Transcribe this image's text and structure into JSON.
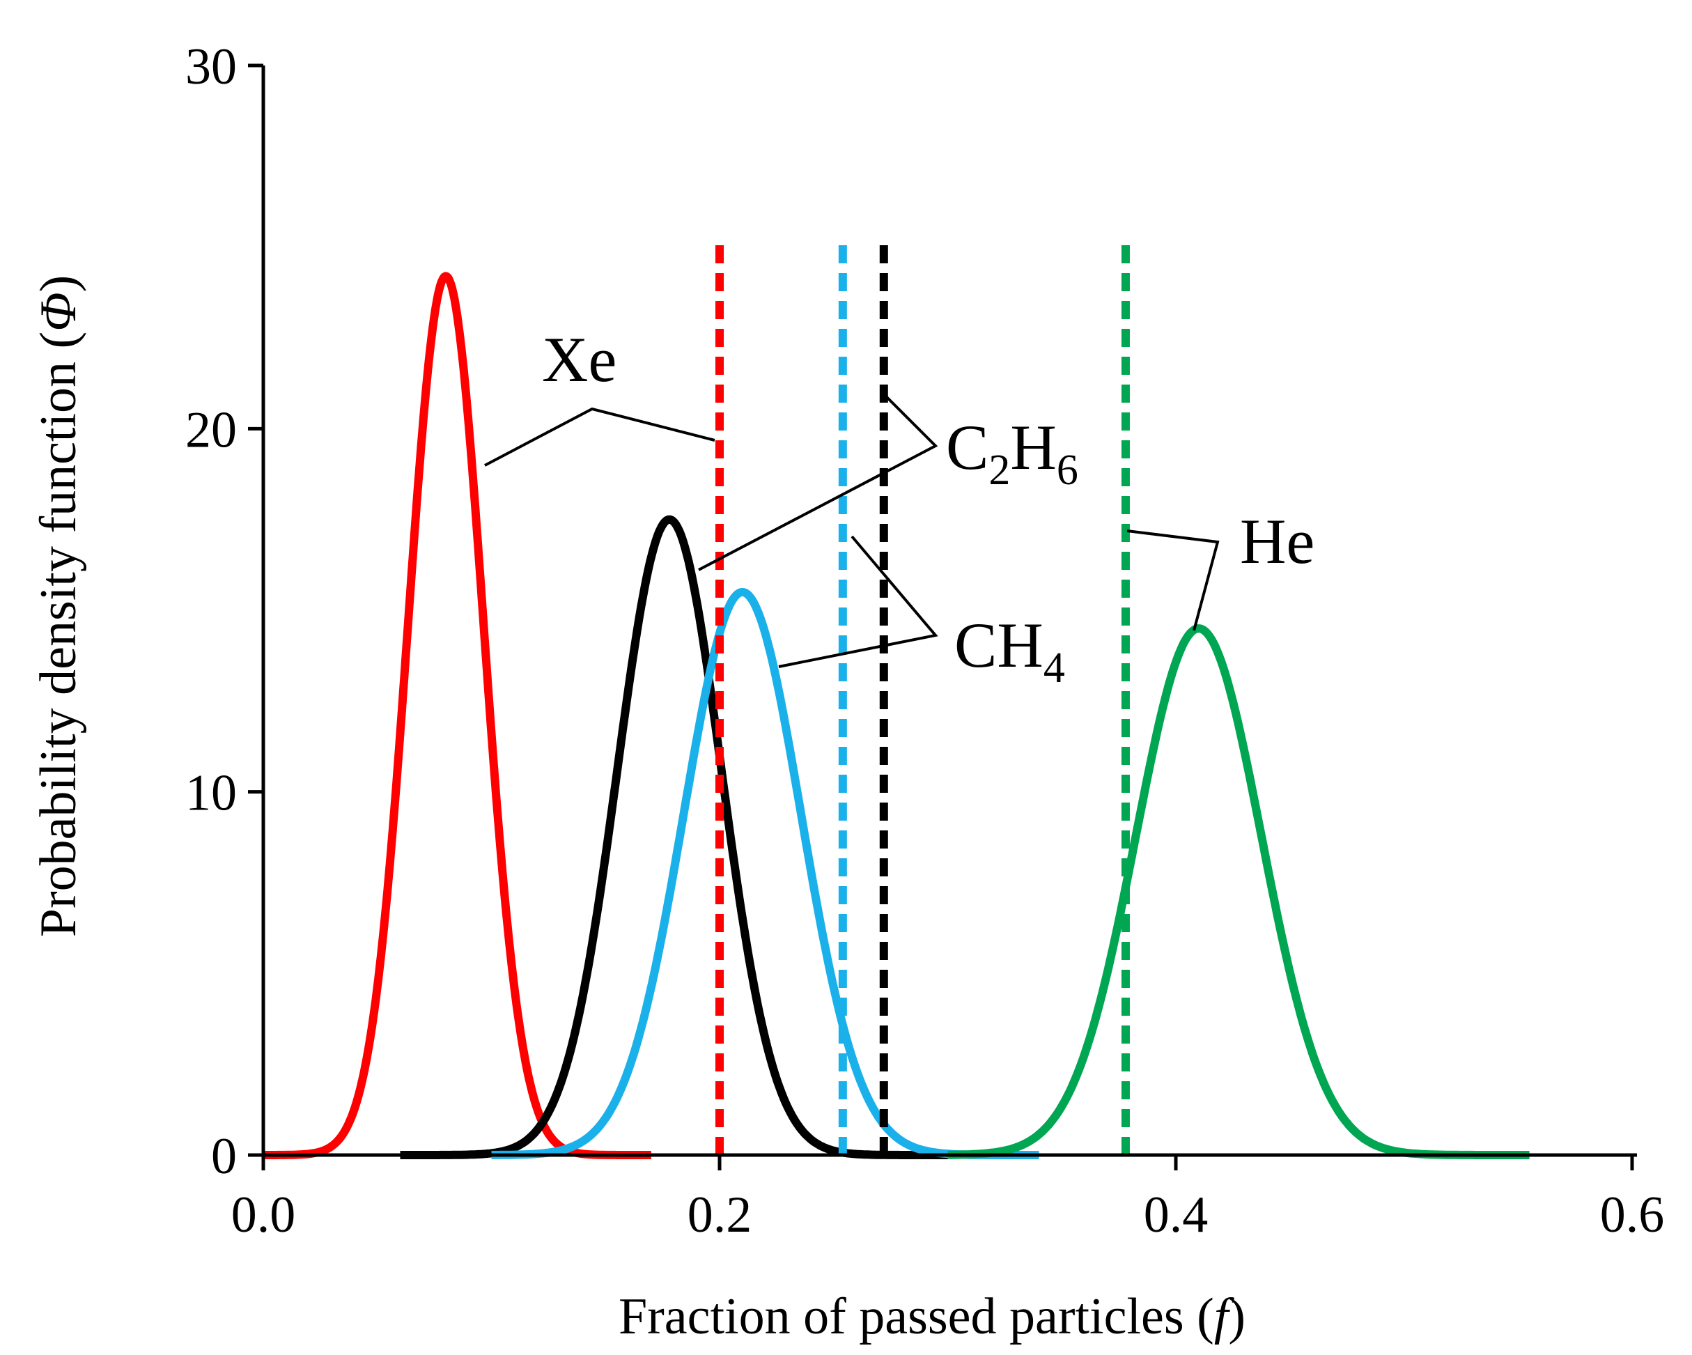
{
  "chart_data": {
    "type": "line",
    "title": "",
    "xlabel": "Fraction of passed particles (f)",
    "xlabel_main": "Fraction of passed particles (",
    "xlabel_var": "f",
    "xlabel_end": ")",
    "ylabel": "Probability density function (Φ)",
    "ylabel_main": "Probability density function (",
    "ylabel_var": "Φ",
    "ylabel_end": ")",
    "xlim": [
      0.0,
      0.6
    ],
    "ylim": [
      0,
      30
    ],
    "xticks": [
      0.0,
      0.2,
      0.4,
      0.6
    ],
    "xtick_labels": [
      "0.0",
      "0.2",
      "0.4",
      "0.6"
    ],
    "yticks": [
      0,
      10,
      20,
      30
    ],
    "ytick_labels": [
      "0",
      "10",
      "20",
      "30"
    ],
    "grid": false,
    "series": [
      {
        "name": "Xe",
        "color": "#ff0000",
        "curve": "gaussian",
        "mean": 0.08,
        "peak": 24.2,
        "sigma": 0.0165,
        "x_start": 0.0,
        "x_end": 0.17,
        "dashed_line_x": 0.2
      },
      {
        "name": "C2H6",
        "color": "#000000",
        "curve": "gaussian",
        "mean": 0.178,
        "peak": 17.5,
        "sigma": 0.0228,
        "x_start": 0.06,
        "x_end": 0.3,
        "dashed_line_x": 0.272
      },
      {
        "name": "CH4",
        "color": "#1ab0ea",
        "curve": "gaussian",
        "mean": 0.21,
        "peak": 15.5,
        "sigma": 0.0257,
        "x_start": 0.1,
        "x_end": 0.34,
        "dashed_line_x": 0.254
      },
      {
        "name": "He",
        "color": "#00a651",
        "curve": "gaussian",
        "mean": 0.41,
        "peak": 14.5,
        "sigma": 0.0275,
        "x_start": 0.3,
        "x_end": 0.555,
        "dashed_line_x": 0.378
      }
    ],
    "annotations": [
      {
        "series": "Xe",
        "text": "Xe",
        "base": "Xe",
        "sub1": "",
        "mid": "",
        "sub2": ""
      },
      {
        "series": "C2H6",
        "text": "C2H6",
        "base": "C",
        "sub1": "2",
        "mid": "H",
        "sub2": "6"
      },
      {
        "series": "CH4",
        "text": "CH4",
        "base": "CH",
        "sub1": "4",
        "mid": "",
        "sub2": ""
      },
      {
        "series": "He",
        "text": "He",
        "base": "He",
        "sub1": "",
        "mid": "",
        "sub2": ""
      }
    ]
  }
}
